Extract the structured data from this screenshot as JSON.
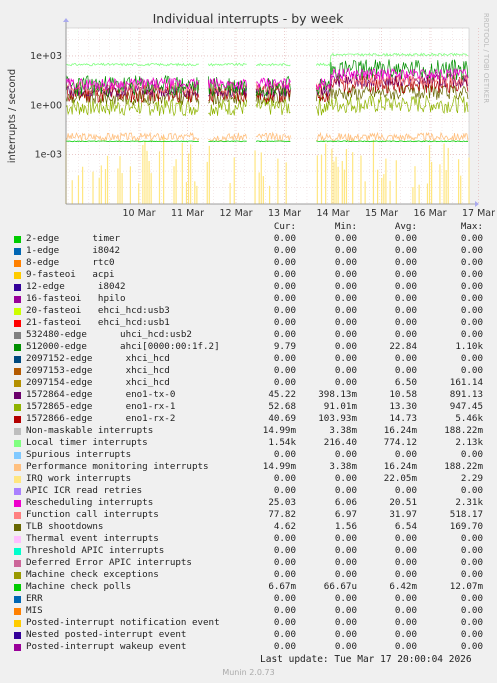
{
  "chart_data": {
    "type": "line",
    "title": "Individual interrupts - by week",
    "ylabel": "interrupts / second",
    "side_label": "RRDTOOL / TOBI OETIKER",
    "yscale": "log",
    "ylim": [
      1e-06,
      50000
    ],
    "y_ticks": [
      {
        "label": "1e+03",
        "value": 1000
      },
      {
        "label": "1e+00",
        "value": 1
      },
      {
        "label": "1e-03",
        "value": 0.001
      }
    ],
    "x_ticks": [
      "10 Mar",
      "11 Mar",
      "12 Mar",
      "13 Mar",
      "14 Mar",
      "15 Mar",
      "16 Mar",
      "17 Mar"
    ],
    "grid": true,
    "columns": {
      "cur": "Cur:",
      "min": "Min:",
      "avg": "Avg:",
      "max": "Max:"
    },
    "series": [
      {
        "name": "2-edge      timer",
        "color": "#00cc00",
        "cur": "0.00",
        "min": "0.00",
        "avg": "0.00",
        "max": "0.00"
      },
      {
        "name": "1-edge      i8042",
        "color": "#0066b3",
        "cur": "0.00",
        "min": "0.00",
        "avg": "0.00",
        "max": "0.00"
      },
      {
        "name": "8-edge      rtc0",
        "color": "#ff8000",
        "cur": "0.00",
        "min": "0.00",
        "avg": "0.00",
        "max": "0.00"
      },
      {
        "name": "9-fasteoi   acpi",
        "color": "#ffcc00",
        "cur": "0.00",
        "min": "0.00",
        "avg": "0.00",
        "max": "0.00"
      },
      {
        "name": "12-edge      i8042",
        "color": "#330099",
        "cur": "0.00",
        "min": "0.00",
        "avg": "0.00",
        "max": "0.00"
      },
      {
        "name": "16-fasteoi   hpilo",
        "color": "#990099",
        "cur": "0.00",
        "min": "0.00",
        "avg": "0.00",
        "max": "0.00"
      },
      {
        "name": "20-fasteoi   ehci_hcd:usb3",
        "color": "#ccff00",
        "cur": "0.00",
        "min": "0.00",
        "avg": "0.00",
        "max": "0.00"
      },
      {
        "name": "21-fasteoi   ehci_hcd:usb1",
        "color": "#ff0000",
        "cur": "0.00",
        "min": "0.00",
        "avg": "0.00",
        "max": "0.00"
      },
      {
        "name": "532480-edge      uhci_hcd:usb2",
        "color": "#808080",
        "cur": "0.00",
        "min": "0.00",
        "avg": "0.00",
        "max": "0.00"
      },
      {
        "name": "512000-edge      ahci[0000:00:1f.2]",
        "color": "#008f00",
        "cur": "9.79",
        "min": "0.00",
        "avg": "22.84",
        "max": "1.10k"
      },
      {
        "name": "2097152-edge      xhci_hcd",
        "color": "#00487d",
        "cur": "0.00",
        "min": "0.00",
        "avg": "0.00",
        "max": "0.00"
      },
      {
        "name": "2097153-edge      xhci_hcd",
        "color": "#b35a00",
        "cur": "0.00",
        "min": "0.00",
        "avg": "0.00",
        "max": "0.00"
      },
      {
        "name": "2097154-edge      xhci_hcd",
        "color": "#b38f00",
        "cur": "0.00",
        "min": "0.00",
        "avg": "6.50",
        "max": "161.14"
      },
      {
        "name": "1572864-edge      eno1-tx-0",
        "color": "#6b006b",
        "cur": "45.22",
        "min": "398.13m",
        "avg": "10.58",
        "max": "891.13"
      },
      {
        "name": "1572865-edge      eno1-rx-1",
        "color": "#8fb300",
        "cur": "52.68",
        "min": "91.01m",
        "avg": "13.30",
        "max": "947.45"
      },
      {
        "name": "1572866-edge      eno1-rx-2",
        "color": "#b30000",
        "cur": "40.69",
        "min": "103.93m",
        "avg": "14.73",
        "max": "5.46k"
      },
      {
        "name": "Non-maskable interrupts",
        "color": "#bebebe",
        "cur": "14.99m",
        "min": "3.38m",
        "avg": "16.24m",
        "max": "188.22m"
      },
      {
        "name": "Local timer interrupts",
        "color": "#80ff80",
        "cur": "1.54k",
        "min": "216.40",
        "avg": "774.12",
        "max": "2.13k"
      },
      {
        "name": "Spurious interrupts",
        "color": "#80c9ff",
        "cur": "0.00",
        "min": "0.00",
        "avg": "0.00",
        "max": "0.00"
      },
      {
        "name": "Performance monitoring interrupts",
        "color": "#ffc080",
        "cur": "14.99m",
        "min": "3.38m",
        "avg": "16.24m",
        "max": "188.22m"
      },
      {
        "name": "IRQ work interrupts",
        "color": "#ffe680",
        "cur": "0.00",
        "min": "0.00",
        "avg": "22.05m",
        "max": "2.29"
      },
      {
        "name": "APIC ICR read retries",
        "color": "#aa80ff",
        "cur": "0.00",
        "min": "0.00",
        "avg": "0.00",
        "max": "0.00"
      },
      {
        "name": "Rescheduling interrupts",
        "color": "#ee00cc",
        "cur": "25.03",
        "min": "6.06",
        "avg": "20.51",
        "max": "2.31k"
      },
      {
        "name": "Function call interrupts",
        "color": "#ff8080",
        "cur": "77.82",
        "min": "6.97",
        "avg": "31.97",
        "max": "518.17"
      },
      {
        "name": "TLB shootdowns",
        "color": "#666600",
        "cur": "4.62",
        "min": "1.56",
        "avg": "6.54",
        "max": "169.70"
      },
      {
        "name": "Thermal event interrupts",
        "color": "#ffbfff",
        "cur": "0.00",
        "min": "0.00",
        "avg": "0.00",
        "max": "0.00"
      },
      {
        "name": "Threshold APIC interrupts",
        "color": "#00ffcc",
        "cur": "0.00",
        "min": "0.00",
        "avg": "0.00",
        "max": "0.00"
      },
      {
        "name": "Deferred Error APIC interrupts",
        "color": "#cc6699",
        "cur": "0.00",
        "min": "0.00",
        "avg": "0.00",
        "max": "0.00"
      },
      {
        "name": "Machine check exceptions",
        "color": "#999900",
        "cur": "0.00",
        "min": "0.00",
        "avg": "0.00",
        "max": "0.00"
      },
      {
        "name": "Machine check polls",
        "color": "#00cc00",
        "cur": "6.67m",
        "min": "66.67u",
        "avg": "6.42m",
        "max": "12.07m"
      },
      {
        "name": "ERR",
        "color": "#0066b3",
        "cur": "0.00",
        "min": "0.00",
        "avg": "0.00",
        "max": "0.00"
      },
      {
        "name": "MIS",
        "color": "#ff8000",
        "cur": "0.00",
        "min": "0.00",
        "avg": "0.00",
        "max": "0.00"
      },
      {
        "name": "Posted-interrupt notification event",
        "color": "#ffcc00",
        "cur": "0.00",
        "min": "0.00",
        "avg": "0.00",
        "max": "0.00"
      },
      {
        "name": "Nested posted-interrupt event",
        "color": "#330099",
        "cur": "0.00",
        "min": "0.00",
        "avg": "0.00",
        "max": "0.00"
      },
      {
        "name": "Posted-interrupt wakeup event",
        "color": "#990099",
        "cur": "0.00",
        "min": "0.00",
        "avg": "0.00",
        "max": "0.00"
      }
    ]
  },
  "footer": {
    "last_update": "Last update: Tue Mar 17 20:00:04 2026",
    "version": "Munin 2.0.73"
  }
}
